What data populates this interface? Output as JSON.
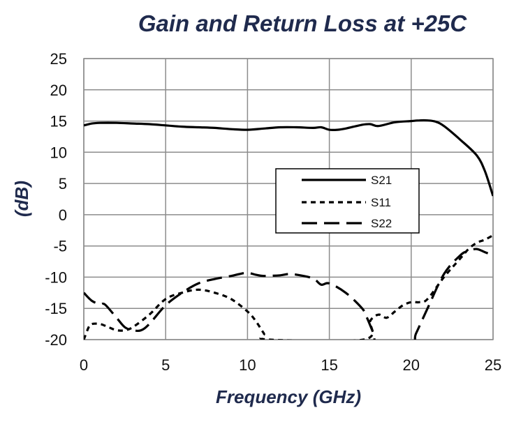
{
  "chart_data": {
    "type": "line",
    "title": "Gain and Return Loss at +25C",
    "xlabel": "Frequency (GHz)",
    "ylabel": "(dB)",
    "xlim": [
      0,
      25
    ],
    "ylim": [
      -20,
      25
    ],
    "xticks": [
      0,
      5,
      10,
      15,
      20,
      25
    ],
    "yticks": [
      25,
      20,
      15,
      10,
      5,
      0,
      -5,
      -10,
      -15,
      -20
    ],
    "grid": true,
    "legend_position": "center-right",
    "series": [
      {
        "name": "S21",
        "style": "solid",
        "color": "#000000",
        "x": [
          0,
          0.5,
          1,
          2,
          3,
          4,
          5,
          6,
          7,
          8,
          9,
          10,
          11,
          12,
          13,
          14,
          14.5,
          15,
          15.5,
          16,
          17,
          17.5,
          18,
          19,
          20,
          20.5,
          21,
          21.5,
          22,
          23,
          24,
          24.5,
          25
        ],
        "y": [
          14.3,
          14.6,
          14.7,
          14.7,
          14.6,
          14.5,
          14.3,
          14.1,
          14.0,
          13.9,
          13.7,
          13.6,
          13.8,
          14.0,
          14.0,
          13.9,
          14.0,
          13.6,
          13.6,
          13.8,
          14.4,
          14.5,
          14.2,
          14.8,
          15.0,
          15.1,
          15.1,
          14.9,
          14.2,
          12.0,
          9.5,
          7.0,
          3.0
        ]
      },
      {
        "name": "S11",
        "style": "dash",
        "color": "#000000",
        "x": [
          0,
          0.3,
          0.5,
          1,
          1.5,
          2,
          2.5,
          3,
          4,
          5,
          6,
          7,
          8,
          9,
          10,
          10.5,
          11,
          11.3,
          17.1,
          17.5,
          18,
          18.5,
          19,
          19.5,
          20,
          20.5,
          21,
          22,
          23,
          23.5,
          24,
          24.5,
          25
        ],
        "y": [
          -20,
          -18,
          -17.5,
          -17.5,
          -18,
          -18.5,
          -18.5,
          -18,
          -16,
          -13.5,
          -12.5,
          -12,
          -12.5,
          -13.5,
          -15.5,
          -17,
          -19,
          -20,
          -20,
          -17,
          -16,
          -16.5,
          -15.5,
          -14.5,
          -14,
          -14,
          -13.5,
          -10,
          -7,
          -5.5,
          -4.5,
          -4,
          -3.3
        ]
      },
      {
        "name": "S22",
        "style": "longdash",
        "color": "#000000",
        "x": [
          0,
          0.5,
          1,
          1.3,
          2,
          2.5,
          3,
          3.5,
          4,
          5,
          6,
          7,
          8,
          9,
          9.5,
          10,
          10.5,
          11,
          12,
          12.5,
          13,
          14,
          14.5,
          15,
          16,
          17,
          17.3,
          17.7,
          18,
          20,
          20.3,
          21,
          22,
          23,
          23.5,
          24,
          24.5,
          25
        ],
        "y": [
          -12.5,
          -13.8,
          -14.3,
          -14.4,
          -16.5,
          -18,
          -18.5,
          -18.5,
          -17.5,
          -14.5,
          -12.5,
          -11,
          -10.3,
          -9.8,
          -9.5,
          -9.3,
          -9.6,
          -9.8,
          -9.7,
          -9.5,
          -9.6,
          -10.2,
          -11.2,
          -11.0,
          -12.5,
          -15,
          -16.5,
          -19,
          -20.5,
          -20.5,
          -19,
          -15,
          -9.5,
          -6.5,
          -5.8,
          -5.5,
          -6.0,
          -6.5
        ]
      }
    ]
  }
}
